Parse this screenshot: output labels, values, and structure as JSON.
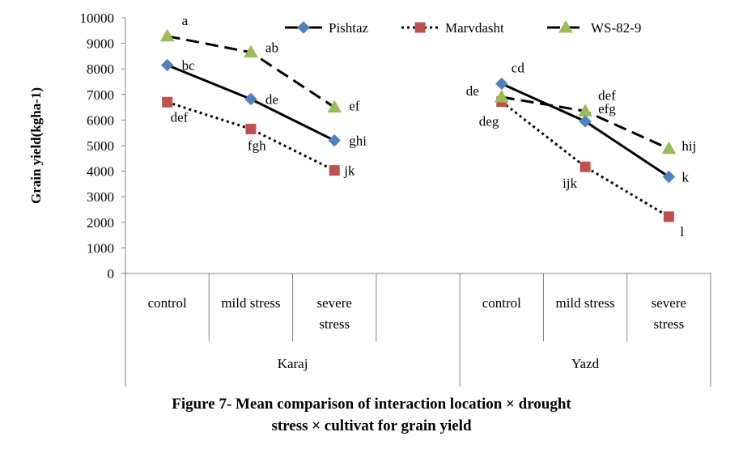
{
  "chart_data": {
    "type": "line",
    "ylabel": "Grain yield(kgha-1)",
    "ylim": [
      0,
      10000
    ],
    "yticks": [
      0,
      1000,
      2000,
      3000,
      4000,
      5000,
      6000,
      7000,
      8000,
      9000,
      10000
    ],
    "grid": false,
    "legend_position": "top",
    "groups": [
      {
        "name": "Karaj",
        "categories": [
          "control",
          "mild stress",
          "severe stress"
        ]
      },
      {
        "name": "Yazd",
        "categories": [
          "control",
          "mild stress",
          "severe stress"
        ]
      }
    ],
    "series": [
      {
        "name": "Pishtaz",
        "color": "#4F81BD",
        "marker": "diamond",
        "line_style": "solid",
        "groups": [
          {
            "values": [
              8150,
              6820,
              5200
            ],
            "labels": [
              "bc",
              "de",
              "ghi"
            ]
          },
          {
            "values": [
              7420,
              5950,
              3780
            ],
            "labels": [
              "cd",
              "efg",
              "k"
            ]
          }
        ]
      },
      {
        "name": "Marvdasht",
        "color": "#C0504D",
        "marker": "square",
        "line_style": "dotted",
        "groups": [
          {
            "values": [
              6700,
              5650,
              4030
            ],
            "labels": [
              "def",
              "fgh",
              "jk"
            ]
          },
          {
            "values": [
              6720,
              4170,
              2220
            ],
            "labels": [
              "deg",
              "ijk",
              "l"
            ]
          }
        ]
      },
      {
        "name": "WS-82-9",
        "color": "#9BBB59",
        "marker": "triangle",
        "line_style": "dashed",
        "groups": [
          {
            "values": [
              9280,
              8650,
              6500
            ],
            "labels": [
              "a",
              "ab",
              "ef"
            ]
          },
          {
            "values": [
              6900,
              6350,
              4880
            ],
            "labels": [
              "de",
              "def",
              "hij"
            ]
          }
        ]
      }
    ]
  },
  "caption": {
    "line1": "Figure 7- Mean comparison of interaction location × drought",
    "line2": "stress × cultivat for grain yield"
  }
}
